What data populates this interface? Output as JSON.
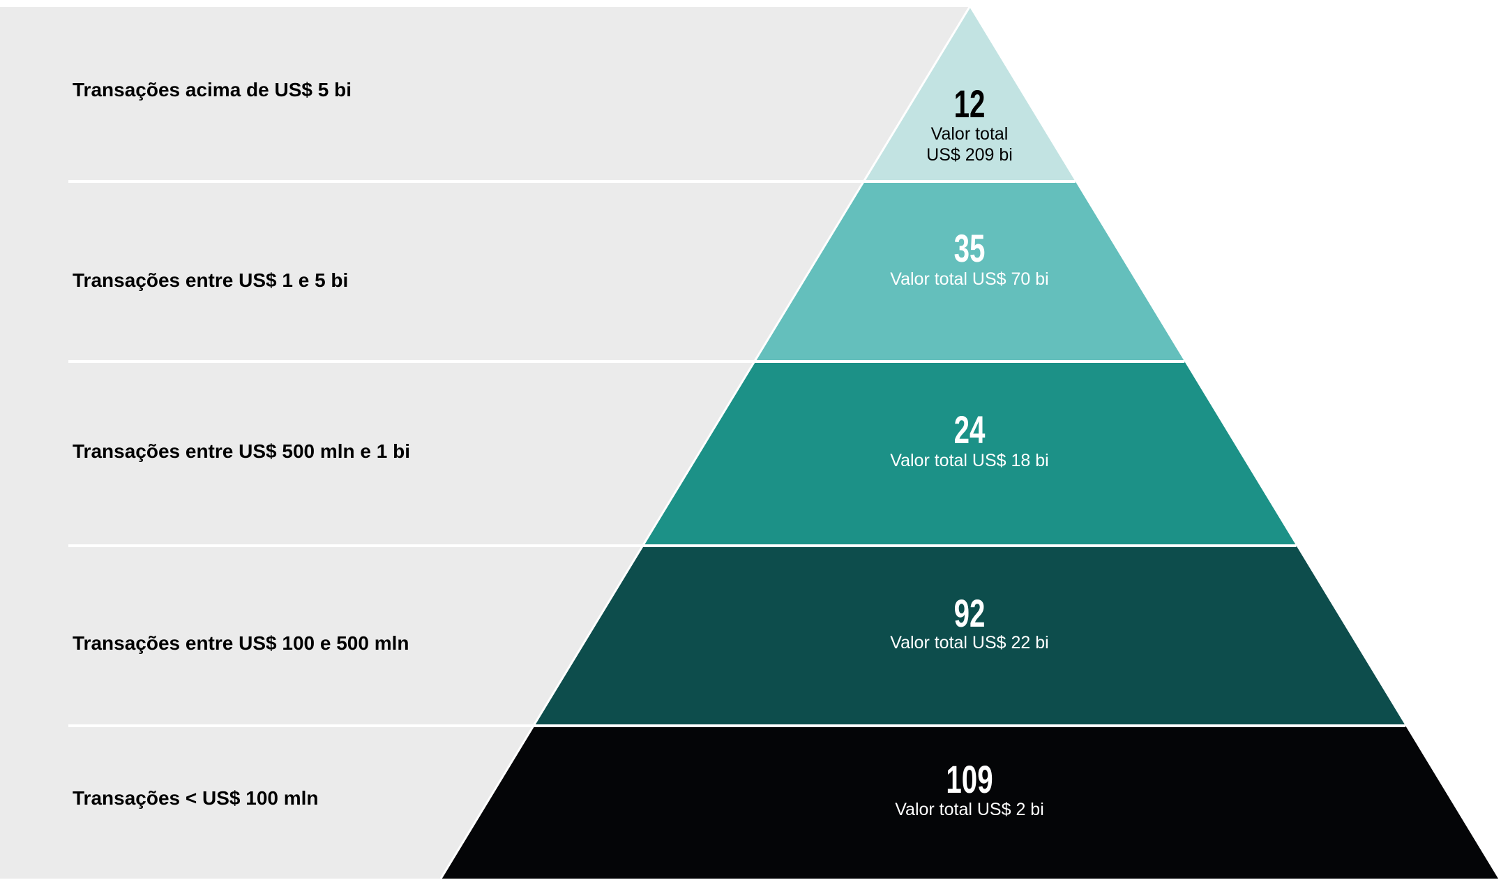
{
  "colors": {
    "panel": "#ebebeb",
    "divider": "#ffffff",
    "tiers": [
      "#c2e3e2",
      "#64bfbc",
      "#1c9187",
      "#0d4d4c",
      "#040507"
    ],
    "count_text": [
      "#000000",
      "#ffffff",
      "#ffffff",
      "#ffffff",
      "#ffffff"
    ],
    "sub_text": [
      "#000000",
      "#ffffff",
      "#ffffff",
      "#ffffff",
      "#ffffff"
    ]
  },
  "tiers": [
    {
      "label": "Transações acima de US$ 5 bi",
      "count": "12",
      "subtitle_lines": [
        "Valor total",
        "US$ 209 bi"
      ],
      "transactions": 12,
      "total_value_usd_bi": 209
    },
    {
      "label": "Transações entre US$ 1 e 5 bi",
      "count": "35",
      "subtitle_lines": [
        "Valor total US$ 70 bi"
      ],
      "transactions": 35,
      "total_value_usd_bi": 70
    },
    {
      "label": "Transações entre US$ 500 mln e 1 bi",
      "count": "24",
      "subtitle_lines": [
        "Valor total US$ 18 bi"
      ],
      "transactions": 24,
      "total_value_usd_bi": 18
    },
    {
      "label": "Transações entre US$ 100 e 500 mln",
      "count": "92",
      "subtitle_lines": [
        "Valor total US$ 22 bi"
      ],
      "transactions": 92,
      "total_value_usd_bi": 22
    },
    {
      "label": "Transações < US$ 100 mln",
      "count": "109",
      "subtitle_lines": [
        "Valor total US$ 2 bi"
      ],
      "transactions": 109,
      "total_value_usd_bi": 2
    }
  ]
}
